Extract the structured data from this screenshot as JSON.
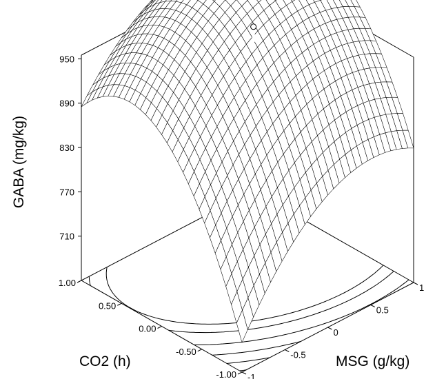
{
  "chart_data": {
    "type": "surface3d",
    "title": "",
    "zlabel": "GABA (mg/kg)",
    "xlabel": "MSG (g/kg)",
    "ylabel": "CO2 (h)",
    "z_ticks": [
      "710",
      "770",
      "830",
      "890",
      "950"
    ],
    "z_tick_values": [
      710,
      770,
      830,
      890,
      950
    ],
    "zlim": [
      650,
      955
    ],
    "x_ticks": [
      "-1",
      "-0.5",
      "0",
      "0.5",
      "1"
    ],
    "x_tick_values": [
      -1,
      -0.5,
      0,
      0.5,
      1
    ],
    "y_ticks": [
      "-1.00",
      "-0.50",
      "0.00",
      "0.50",
      "1.00"
    ],
    "y_tick_values": [
      -1,
      -0.5,
      0,
      0.5,
      1
    ],
    "xlim": [
      -1,
      1
    ],
    "ylim": [
      -1,
      1
    ],
    "corner_values": {
      "msg_-1_co2_1": 885,
      "msg_1_co2_1": 955,
      "msg_1_co2_-1": 832,
      "msg_-1_co2_-1": 690
    },
    "optimum_point": {
      "msg": 0.35,
      "co2": 0.3,
      "gaba": 955
    },
    "mesh_grid_lines": 30,
    "projected_contour_base": true,
    "grid": false
  }
}
